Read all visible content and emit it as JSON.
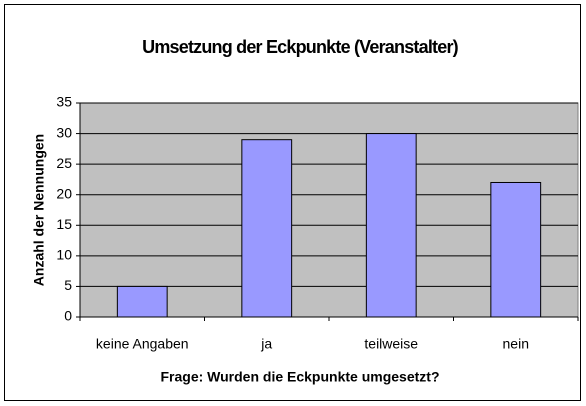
{
  "chart_data": {
    "type": "bar",
    "title": "Umsetzung der Eckpunkte (Veranstalter)",
    "x_label": "Frage: Wurden die Eckpunkte umgesetzt?",
    "y_label": "Anzahl der Nennungen",
    "categories": [
      "keine Angaben",
      "ja",
      "teilweise",
      "nein"
    ],
    "values": [
      5,
      29,
      30,
      22
    ],
    "color": "#9999ff",
    "ylim": [
      0,
      35
    ],
    "yticks": [
      0,
      5,
      10,
      15,
      20,
      25,
      30,
      35
    ],
    "grid": true
  }
}
